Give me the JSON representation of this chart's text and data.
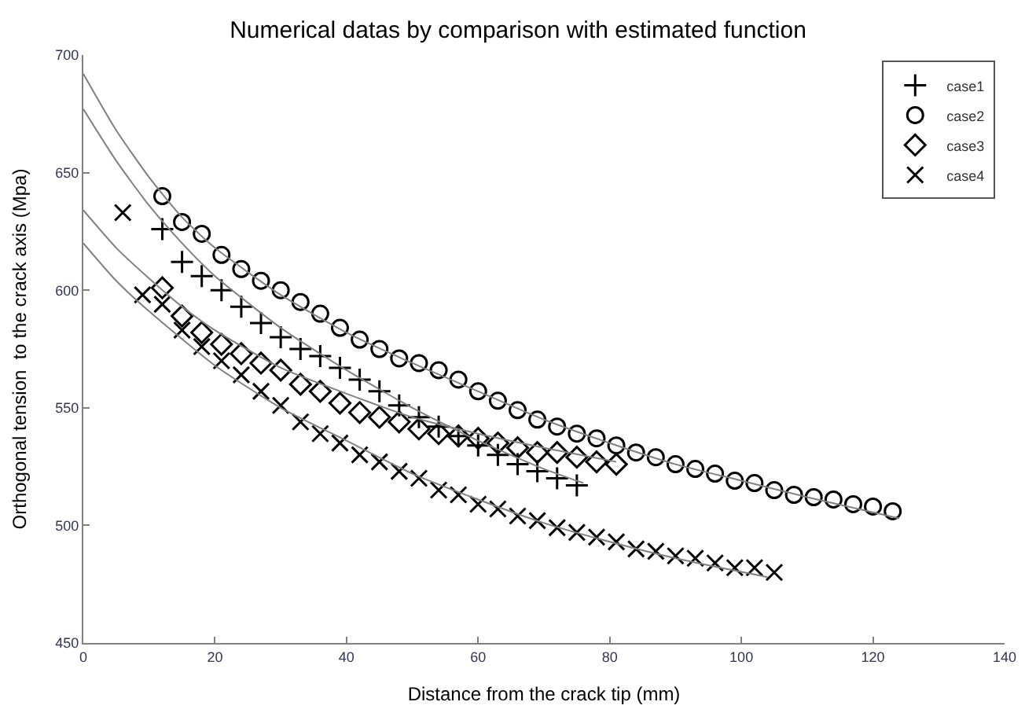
{
  "chart_data": {
    "type": "scatter",
    "title": "Numerical datas by comparison with estimated function",
    "xlabel": "Distance from the crack tip (mm)",
    "ylabel": "Orthogonal tension  to the crack axis (Mpa)",
    "xlim": [
      0,
      140
    ],
    "xticks": [
      0,
      20,
      40,
      60,
      80,
      100,
      120,
      140
    ],
    "ylim": [
      450,
      700
    ],
    "yticks": [
      450,
      500,
      550,
      600,
      650,
      700
    ],
    "legend": "top right",
    "series": [
      {
        "name": "case1",
        "color": "#000000",
        "marker": "cross",
        "x": [
          12,
          15,
          18,
          21,
          24,
          27,
          30,
          33,
          36,
          39,
          42,
          45,
          48,
          51,
          54,
          57,
          60,
          63,
          66,
          69,
          72,
          75
        ],
        "values": [
          626,
          612,
          606,
          600,
          593,
          586,
          580,
          575,
          572,
          567,
          562,
          557,
          551,
          546,
          542,
          538,
          534,
          530,
          526,
          523,
          520,
          517
        ]
      },
      {
        "name": "case2",
        "color": "#000000",
        "marker": "circle",
        "x": [
          12,
          15,
          18,
          21,
          24,
          27,
          30,
          33,
          36,
          39,
          42,
          45,
          48,
          51,
          54,
          57,
          60,
          63,
          66,
          69,
          72,
          75,
          78,
          81,
          84,
          87,
          90,
          93,
          96,
          99,
          102,
          105,
          108,
          111,
          114,
          117,
          120,
          123
        ],
        "values": [
          640,
          629,
          624,
          615,
          609,
          604,
          600,
          595,
          590,
          584,
          579,
          575,
          571,
          569,
          566,
          562,
          557,
          553,
          549,
          545,
          542,
          539,
          537,
          534,
          531,
          529,
          526,
          524,
          522,
          519,
          518,
          515,
          513,
          512,
          511,
          509,
          508,
          506
        ]
      },
      {
        "name": "case3",
        "color": "#000000",
        "marker": "diamond",
        "x": [
          12,
          15,
          18,
          21,
          24,
          27,
          30,
          33,
          36,
          39,
          42,
          45,
          48,
          51,
          54,
          57,
          60,
          63,
          66,
          69,
          72,
          75,
          78,
          81
        ],
        "values": [
          601,
          589,
          582,
          577,
          573,
          569,
          566,
          560,
          557,
          552,
          548,
          546,
          544,
          541,
          539,
          538,
          537,
          535,
          533,
          531,
          531,
          529,
          527,
          526
        ]
      },
      {
        "name": "case4",
        "color": "#000000",
        "marker": "x",
        "x": [
          6,
          9,
          12,
          15,
          18,
          21,
          24,
          27,
          30,
          33,
          36,
          39,
          42,
          45,
          48,
          51,
          54,
          57,
          60,
          63,
          66,
          69,
          72,
          75,
          78,
          81,
          84,
          87,
          90,
          93,
          96,
          99,
          102,
          105
        ],
        "values": [
          633,
          598,
          594,
          583,
          576,
          570,
          564,
          557,
          551,
          544,
          539,
          535,
          530,
          527,
          523,
          520,
          515,
          513,
          509,
          507,
          504,
          502,
          499,
          497,
          495,
          493,
          490,
          489,
          487,
          486,
          484,
          482,
          482,
          480
        ]
      },
      {
        "type": "line",
        "color": "#808080",
        "marker": "none",
        "x": [
          0,
          5,
          10,
          15,
          20,
          30,
          40,
          50,
          60,
          70,
          80,
          90,
          100,
          110,
          124
        ],
        "values": [
          692,
          668,
          648,
          631,
          618,
          598,
          582,
          569,
          557,
          545,
          535,
          526,
          519,
          512,
          503
        ]
      },
      {
        "type": "line",
        "color": "#808080",
        "marker": "none",
        "x": [
          0,
          5,
          10,
          15,
          20,
          30,
          40,
          50,
          60,
          70,
          76
        ],
        "values": [
          677,
          655,
          636,
          620,
          606,
          584,
          566,
          550,
          536,
          524,
          518
        ]
      },
      {
        "type": "line",
        "color": "#808080",
        "marker": "none",
        "x": [
          0,
          5,
          10,
          15,
          20,
          30,
          40,
          50,
          60,
          70,
          81
        ],
        "values": [
          634,
          618,
          605,
          593,
          583,
          567,
          556,
          546,
          539,
          533,
          527
        ]
      },
      {
        "type": "line",
        "color": "#808080",
        "marker": "none",
        "x": [
          0,
          5,
          10,
          20,
          30,
          40,
          50,
          60,
          70,
          80,
          90,
          104
        ],
        "values": [
          620,
          604,
          591,
          568,
          550,
          536,
          522,
          511,
          501,
          493,
          486,
          478
        ]
      }
    ]
  }
}
